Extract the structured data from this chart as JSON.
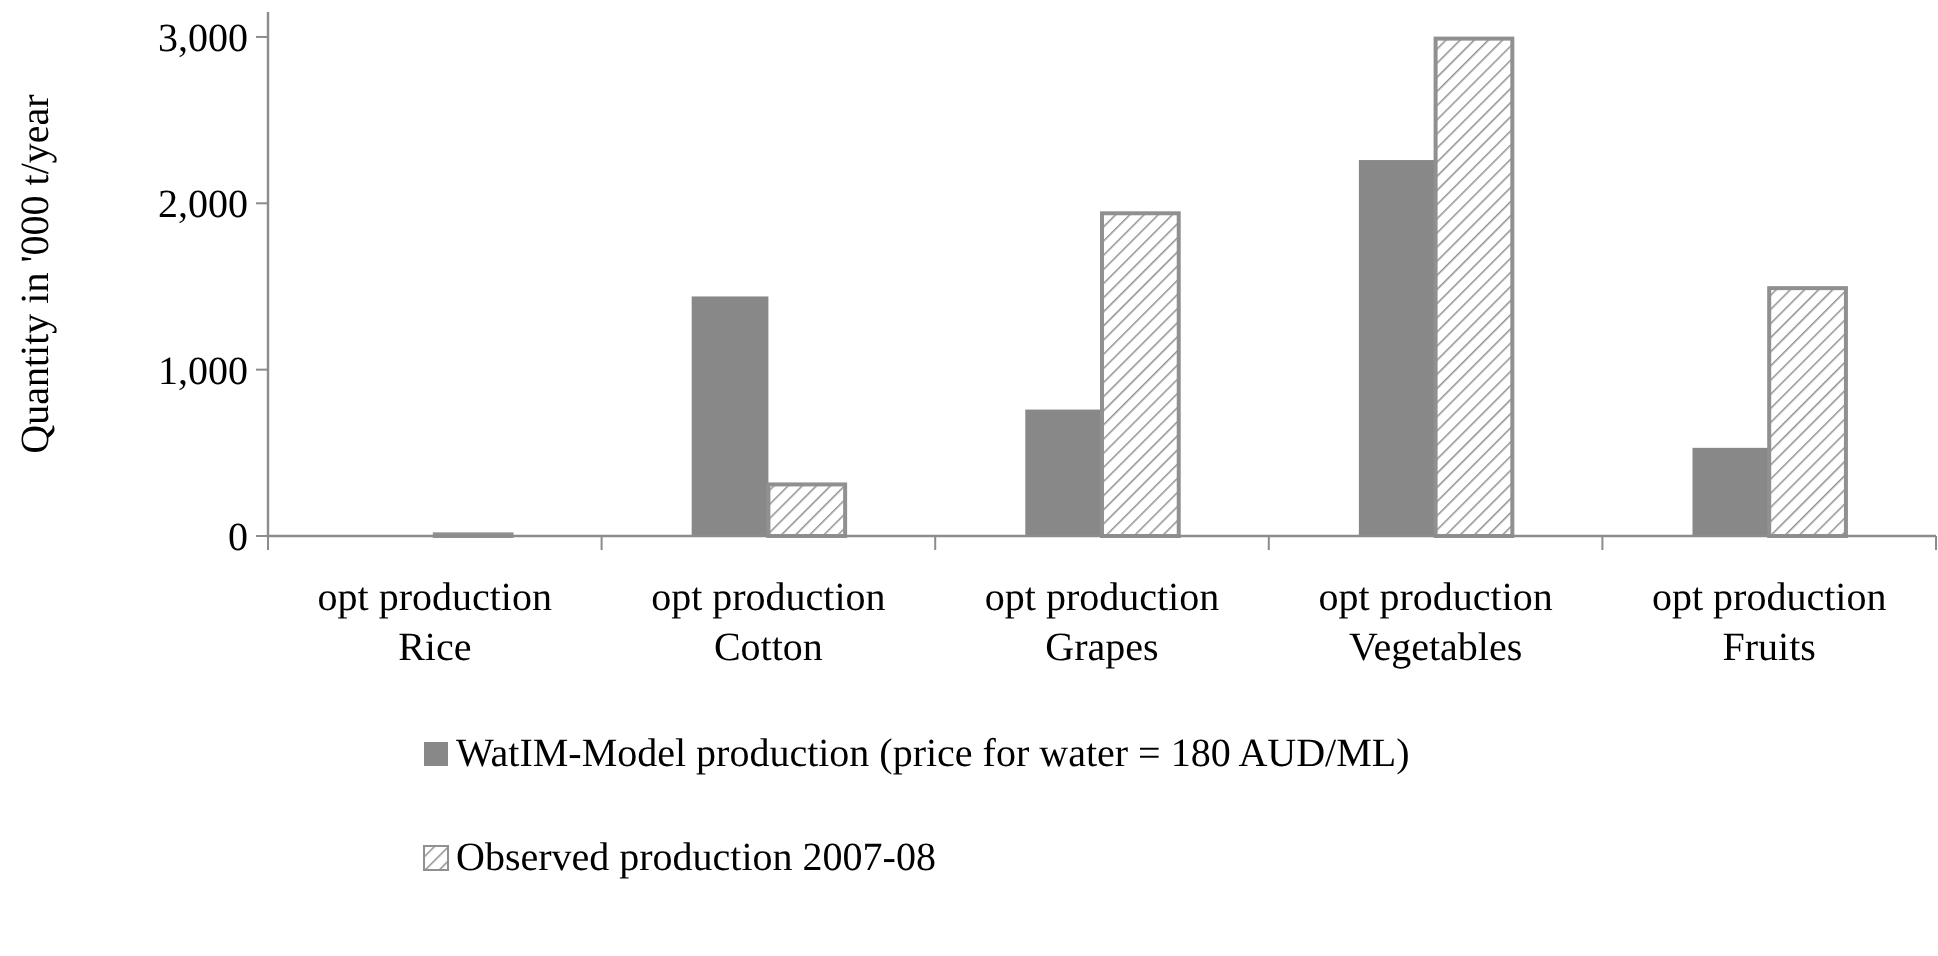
{
  "chart_data": {
    "type": "bar",
    "ylabel": "Quantity in '000 t/year",
    "categories": [
      "opt production\nRice",
      "opt production\nCotton",
      "opt production\nGrapes",
      "opt production\nVegetables",
      "opt production\nFruits"
    ],
    "series": [
      {
        "name": "WatIM-Model production (price for water = 180 AUD/ML)",
        "color": "#888888",
        "values": [
          0,
          1440,
          760,
          2260,
          530
        ]
      },
      {
        "name": "Observed production 2007-08",
        "color": "#909090",
        "values": [
          10,
          310,
          1940,
          2990,
          1490
        ]
      }
    ],
    "ylim": [
      0,
      3150
    ],
    "yticks": [
      {
        "value": 0,
        "label": "0"
      },
      {
        "value": 1000,
        "label": "1,000"
      },
      {
        "value": 2000,
        "label": "2,000"
      },
      {
        "value": 3000,
        "label": "3,000"
      }
    ],
    "grid": false,
    "legend": "bottom"
  }
}
